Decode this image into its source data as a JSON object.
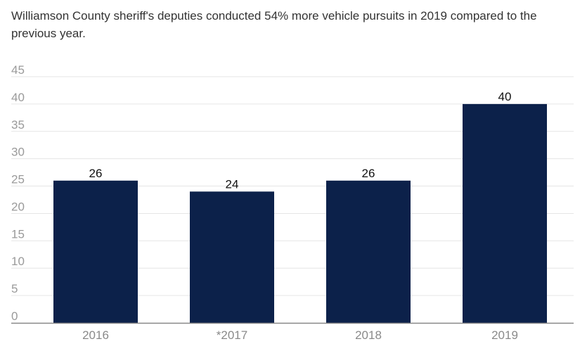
{
  "chart_data": {
    "type": "bar",
    "title": "Williamson County sheriff's deputies conducted 54% more vehicle pursuits in 2019 compared to the previous year.",
    "categories": [
      "2016",
      "*2017",
      "2018",
      "2019"
    ],
    "values": [
      26,
      24,
      26,
      40
    ],
    "data_labels": [
      "26",
      "24",
      "26",
      "40"
    ],
    "yticks": [
      "0",
      "5",
      "10",
      "15",
      "20",
      "25",
      "30",
      "35",
      "40",
      "45"
    ],
    "ylim": [
      0,
      45
    ],
    "xlabel": "",
    "ylabel": "",
    "grid": true,
    "legend": "none",
    "bar_color": "#0c214a",
    "grid_color": "#e6e6e6",
    "axis_color": "#888888"
  }
}
